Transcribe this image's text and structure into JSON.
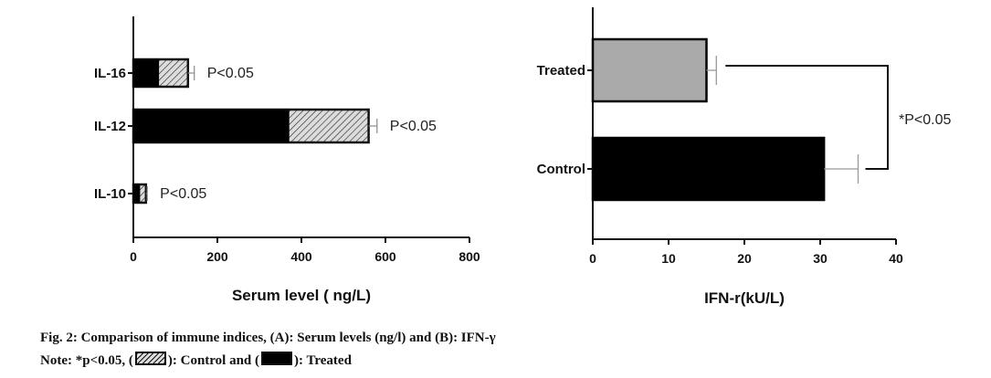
{
  "chart_data": [
    {
      "type": "bar",
      "orientation": "horizontal",
      "categories": [
        "IL-16",
        "IL-12",
        "IL-10"
      ],
      "series": [
        {
          "name": "Treated",
          "fill": "#000000",
          "values": [
            60,
            370,
            15
          ],
          "error": [
            0,
            0,
            0
          ]
        },
        {
          "name": "Control",
          "fill": "hatched",
          "values": [
            130,
            560,
            30
          ],
          "error": [
            15,
            20,
            3
          ]
        }
      ],
      "annotations": [
        "P<0.05",
        "P<0.05",
        "P<0.05"
      ],
      "xlabel": "Serum level ( ng/L)",
      "xlim": [
        0,
        800
      ],
      "xticks": [
        0,
        200,
        400,
        600,
        800
      ],
      "grid": false
    },
    {
      "type": "bar",
      "orientation": "horizontal",
      "categories": [
        "Treated",
        "Control"
      ],
      "values": [
        15,
        30.5
      ],
      "error": [
        1.3,
        4.5
      ],
      "colors": [
        "#aaaaaa",
        "#000000"
      ],
      "significance": "*P<0.05",
      "xlabel": "IFN-r(kU/L)",
      "xlim": [
        0,
        40
      ],
      "xticks": [
        0,
        10,
        20,
        30,
        40
      ],
      "grid": false
    }
  ],
  "caption": {
    "line1": "Fig. 2: Comparison of immune indices, (A): Serum levels (ng/l) and (B): IFN-γ",
    "line2_prefix": "Note: *p<0.05, (",
    "line2_mid": "): Control and (",
    "line2_suffix": "): Treated"
  }
}
